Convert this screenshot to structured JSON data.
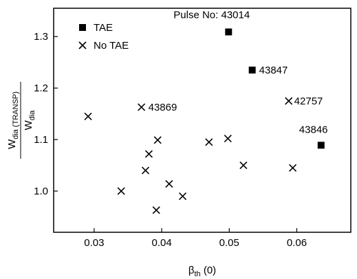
{
  "chart_data": {
    "type": "scatter",
    "xlim": [
      0.024,
      0.068
    ],
    "ylim": [
      0.92,
      1.355
    ],
    "x_ticks": [
      0.03,
      0.04,
      0.05,
      0.06
    ],
    "x_tick_labels": [
      "0.03",
      "0.04",
      "0.05",
      "0.06"
    ],
    "y_ticks": [
      1.0,
      1.1,
      1.2,
      1.3
    ],
    "y_tick_labels": [
      "1.0",
      "1.1",
      "1.2",
      "1.3"
    ],
    "xlabel": {
      "base": "β",
      "sub": "th",
      "suffix": " (0)"
    },
    "ylabel": {
      "numerator_base": "W",
      "numerator_sub": "dia (TRANSP)",
      "denominator_base": "W",
      "denominator_sub": "dia"
    },
    "legend_position": "top-left",
    "grid": false,
    "series": [
      {
        "name": "TAE",
        "marker": "square",
        "points": [
          {
            "x": 0.0499,
            "y": 1.309,
            "label": "Pulse No: 43014"
          },
          {
            "x": 0.0534,
            "y": 1.235,
            "label": "43847"
          },
          {
            "x": 0.0636,
            "y": 1.089,
            "label": "43846"
          }
        ]
      },
      {
        "name": "No TAE",
        "marker": "cross",
        "points": [
          {
            "x": 0.0291,
            "y": 1.145,
            "label": ""
          },
          {
            "x": 0.034,
            "y": 1.0,
            "label": ""
          },
          {
            "x": 0.037,
            "y": 1.163,
            "label": "43869"
          },
          {
            "x": 0.0376,
            "y": 1.04,
            "label": ""
          },
          {
            "x": 0.0381,
            "y": 1.072,
            "label": ""
          },
          {
            "x": 0.0392,
            "y": 0.963,
            "label": ""
          },
          {
            "x": 0.0394,
            "y": 1.099,
            "label": ""
          },
          {
            "x": 0.0411,
            "y": 1.014,
            "label": ""
          },
          {
            "x": 0.0431,
            "y": 0.99,
            "label": ""
          },
          {
            "x": 0.047,
            "y": 1.095,
            "label": ""
          },
          {
            "x": 0.0498,
            "y": 1.102,
            "label": ""
          },
          {
            "x": 0.0521,
            "y": 1.05,
            "label": ""
          },
          {
            "x": 0.0588,
            "y": 1.175,
            "label": "42757"
          },
          {
            "x": 0.0594,
            "y": 1.045,
            "label": ""
          }
        ]
      }
    ]
  }
}
